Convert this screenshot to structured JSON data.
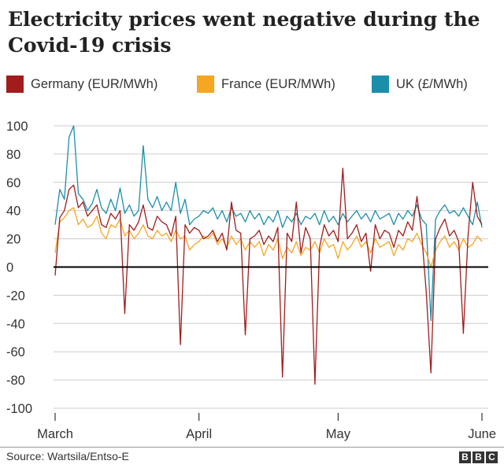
{
  "title": "Electricity prices went negative during the Covid-19 crisis",
  "source": "Source: Wartsila/Entso-E",
  "logo_text": [
    "B",
    "B",
    "C"
  ],
  "chart_data": {
    "type": "line",
    "title": "Electricity prices went negative during the Covid-19 crisis",
    "xlabel": "",
    "ylabel": "",
    "x_unit": "day index from 1 March 2020",
    "xlim": [
      0,
      92
    ],
    "ylim": [
      -100,
      100
    ],
    "yticks": [
      100,
      80,
      60,
      40,
      20,
      0,
      -20,
      -40,
      -60,
      -80,
      -100
    ],
    "xticks": [
      {
        "label": "March",
        "x": 0
      },
      {
        "label": "April",
        "x": 31
      },
      {
        "label": "May",
        "x": 61
      },
      {
        "label": "June",
        "x": 92
      }
    ],
    "grid": true,
    "legend_position": "top",
    "series": [
      {
        "name": "UK (£/MWh)",
        "color": "#1c8eaa",
        "x": [
          0,
          1,
          2,
          3,
          4,
          5,
          6,
          7,
          8,
          9,
          10,
          11,
          12,
          13,
          14,
          15,
          16,
          17,
          18,
          19,
          20,
          21,
          22,
          23,
          24,
          25,
          26,
          27,
          28,
          29,
          30,
          31,
          32,
          33,
          34,
          35,
          36,
          37,
          38,
          39,
          40,
          41,
          42,
          43,
          44,
          45,
          46,
          47,
          48,
          49,
          50,
          51,
          52,
          53,
          54,
          55,
          56,
          57,
          58,
          59,
          60,
          61,
          62,
          63,
          64,
          65,
          66,
          67,
          68,
          69,
          70,
          71,
          72,
          73,
          74,
          75,
          76,
          77,
          78,
          79,
          80,
          81,
          82,
          83,
          84,
          85,
          86,
          87,
          88,
          89,
          90,
          91,
          92
        ],
        "values": [
          30,
          55,
          48,
          92,
          100,
          52,
          48,
          40,
          45,
          55,
          42,
          38,
          48,
          40,
          56,
          38,
          44,
          36,
          40,
          86,
          48,
          42,
          50,
          40,
          46,
          40,
          60,
          38,
          48,
          30,
          34,
          36,
          40,
          38,
          42,
          34,
          40,
          32,
          42,
          36,
          38,
          32,
          40,
          34,
          38,
          30,
          36,
          32,
          40,
          28,
          36,
          32,
          38,
          30,
          36,
          34,
          38,
          30,
          40,
          32,
          36,
          30,
          38,
          32,
          36,
          40,
          34,
          38,
          32,
          40,
          34,
          36,
          38,
          30,
          38,
          34,
          40,
          36,
          44,
          34,
          30,
          -38,
          34,
          40,
          44,
          38,
          40,
          36,
          42,
          36,
          30,
          46,
          28
        ]
      },
      {
        "name": "France (EUR/MWh)",
        "color": "#f5a623",
        "x": [
          0,
          1,
          2,
          3,
          4,
          5,
          6,
          7,
          8,
          9,
          10,
          11,
          12,
          13,
          14,
          15,
          16,
          17,
          18,
          19,
          20,
          21,
          22,
          23,
          24,
          25,
          26,
          27,
          28,
          29,
          30,
          31,
          32,
          33,
          34,
          35,
          36,
          37,
          38,
          39,
          40,
          41,
          42,
          43,
          44,
          45,
          46,
          47,
          48,
          49,
          50,
          51,
          52,
          53,
          54,
          55,
          56,
          57,
          58,
          59,
          60,
          61,
          62,
          63,
          64,
          65,
          66,
          67,
          68,
          69,
          70,
          71,
          72,
          73,
          74,
          75,
          76,
          77,
          78,
          79,
          80,
          81,
          82,
          83,
          84,
          85,
          86,
          87,
          88,
          89,
          90,
          91,
          92
        ],
        "values": [
          10,
          32,
          35,
          40,
          42,
          30,
          34,
          28,
          30,
          36,
          24,
          20,
          30,
          28,
          34,
          22,
          26,
          20,
          24,
          30,
          22,
          20,
          26,
          22,
          24,
          18,
          26,
          20,
          22,
          12,
          16,
          18,
          22,
          20,
          24,
          16,
          20,
          14,
          22,
          16,
          20,
          12,
          18,
          14,
          18,
          8,
          16,
          12,
          20,
          6,
          14,
          10,
          18,
          8,
          14,
          12,
          18,
          10,
          20,
          14,
          16,
          6,
          18,
          12,
          16,
          22,
          14,
          18,
          10,
          20,
          14,
          16,
          18,
          8,
          16,
          12,
          20,
          18,
          24,
          16,
          10,
          0,
          12,
          18,
          22,
          14,
          18,
          12,
          20,
          14,
          16,
          22,
          18
        ]
      },
      {
        "name": "Germany (EUR/MWh)",
        "color": "#a11c1c",
        "x": [
          0,
          1,
          2,
          3,
          4,
          5,
          6,
          7,
          8,
          9,
          10,
          11,
          12,
          13,
          14,
          15,
          16,
          17,
          18,
          19,
          20,
          21,
          22,
          23,
          24,
          25,
          26,
          27,
          28,
          29,
          30,
          31,
          32,
          33,
          34,
          35,
          36,
          37,
          38,
          39,
          40,
          41,
          42,
          43,
          44,
          45,
          46,
          47,
          48,
          49,
          50,
          51,
          52,
          53,
          54,
          55,
          56,
          57,
          58,
          59,
          60,
          61,
          62,
          63,
          64,
          65,
          66,
          67,
          68,
          69,
          70,
          71,
          72,
          73,
          74,
          75,
          76,
          77,
          78,
          79,
          80,
          81,
          82,
          83,
          84,
          85,
          86,
          87,
          88,
          89,
          90,
          91,
          92
        ],
        "values": [
          -6,
          35,
          40,
          55,
          58,
          42,
          46,
          36,
          40,
          44,
          30,
          28,
          38,
          34,
          40,
          -33,
          30,
          26,
          32,
          44,
          28,
          26,
          36,
          32,
          30,
          22,
          36,
          -55,
          30,
          24,
          28,
          26,
          20,
          22,
          26,
          18,
          24,
          12,
          46,
          26,
          24,
          -48,
          20,
          22,
          26,
          16,
          22,
          18,
          28,
          -78,
          24,
          18,
          46,
          10,
          28,
          20,
          -83,
          14,
          30,
          22,
          26,
          18,
          70,
          20,
          24,
          30,
          18,
          24,
          -3,
          30,
          20,
          26,
          24,
          14,
          26,
          22,
          32,
          26,
          50,
          24,
          -18,
          -75,
          20,
          28,
          34,
          22,
          26,
          18,
          -47,
          22,
          60,
          36,
          30
        ]
      }
    ]
  },
  "legend": [
    {
      "label": "Germany (EUR/MWh)",
      "color": "#a11c1c"
    },
    {
      "label": "France (EUR/MWh)",
      "color": "#f5a623"
    },
    {
      "label": "UK (£/MWh)",
      "color": "#1c8eaa"
    }
  ]
}
